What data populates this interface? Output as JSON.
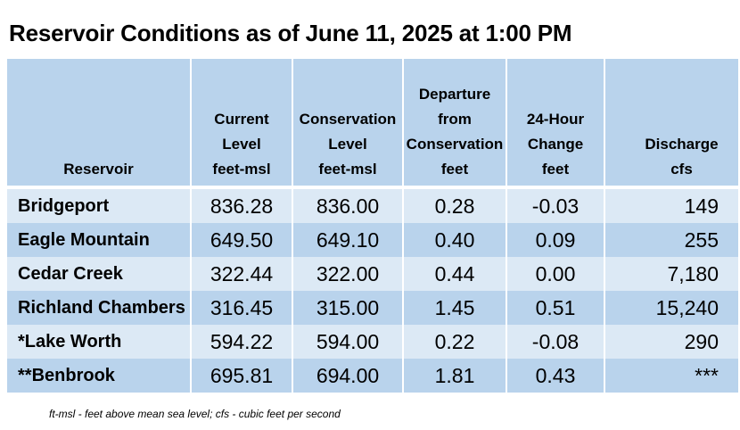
{
  "title": "Reservoir Conditions as of June 11, 2025 at 1:00 PM",
  "headers": {
    "reservoir": [
      "Reservoir"
    ],
    "current": [
      "Current",
      "Level",
      "feet-msl"
    ],
    "conservation": [
      "Conservation",
      "Level",
      "feet-msl"
    ],
    "departure": [
      "Departure",
      "from",
      "Conservation",
      "feet"
    ],
    "change": [
      "24-Hour",
      "Change",
      "feet"
    ],
    "discharge": [
      "Discharge",
      "cfs"
    ]
  },
  "rows": [
    {
      "name": "Bridgeport",
      "current": "836.28",
      "conservation": "836.00",
      "departure": "0.28",
      "change": "-0.03",
      "discharge": "149"
    },
    {
      "name": "Eagle Mountain",
      "current": "649.50",
      "conservation": "649.10",
      "departure": "0.40",
      "change": "0.09",
      "discharge": "255"
    },
    {
      "name": "Cedar Creek",
      "current": "322.44",
      "conservation": "322.00",
      "departure": "0.44",
      "change": "0.00",
      "discharge": "7,180"
    },
    {
      "name": "Richland Chambers",
      "current": "316.45",
      "conservation": "315.00",
      "departure": "1.45",
      "change": "0.51",
      "discharge": "15,240"
    },
    {
      "name": "*Lake Worth",
      "current": "594.22",
      "conservation": "594.00",
      "departure": "0.22",
      "change": "-0.08",
      "discharge": "290"
    },
    {
      "name": "**Benbrook",
      "current": "695.81",
      "conservation": "694.00",
      "departure": "1.81",
      "change": "0.43",
      "discharge": "***"
    }
  ],
  "footnote": "ft-msl - feet above mean sea level; cfs - cubic feet per second",
  "colors": {
    "header_bg": "#b9d3ec",
    "row_light": "#dce9f5",
    "row_dark": "#b9d3ec"
  }
}
